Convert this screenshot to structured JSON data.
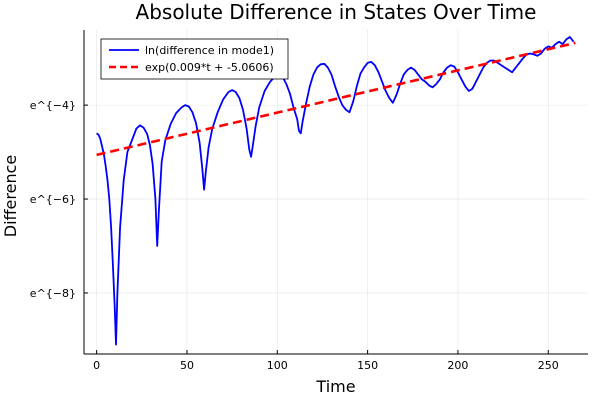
{
  "chart_data": {
    "type": "line",
    "title": "Absolute Difference in States Over Time",
    "xlabel": "Time",
    "ylabel": "Difference",
    "xlim": [
      -7,
      272
    ],
    "ylim": [
      -9.3,
      -2.4
    ],
    "x_ticks": [
      0,
      50,
      100,
      150,
      200,
      250
    ],
    "x_tick_labels": [
      "0",
      "50",
      "100",
      "150",
      "200",
      "250"
    ],
    "y_ticks": [
      -8,
      -6,
      -4
    ],
    "y_tick_labels": [
      "e^{−8}",
      "e^{−6}",
      "e^{−4}"
    ],
    "grid": true,
    "legend_position": "top-left",
    "series": [
      {
        "name": "ln(difference in mode1)",
        "color": "#0000ff",
        "style": "solid",
        "x": [
          0,
          1,
          2,
          3,
          4,
          5,
          6,
          7,
          8,
          9,
          10,
          10.7,
          11.5,
          13,
          15,
          17,
          20,
          22,
          24,
          26,
          28,
          29.5,
          31,
          32.5,
          33.5,
          34.5,
          36,
          38,
          41,
          44,
          47,
          49,
          51,
          53,
          55,
          57,
          58.5,
          59.5,
          60.5,
          62,
          64,
          67,
          70,
          73,
          75,
          77,
          79,
          81,
          83,
          84.5,
          85.5,
          86.5,
          88,
          90,
          93,
          96,
          99,
          101,
          103,
          105,
          107,
          109,
          111,
          112,
          113,
          114,
          116,
          118,
          120,
          122,
          124,
          126,
          128,
          130,
          132,
          134,
          136,
          138,
          140,
          142,
          144,
          146,
          148,
          150,
          152,
          154,
          156,
          158,
          160,
          162,
          164,
          166,
          168,
          170,
          172,
          174,
          176,
          178,
          180,
          182,
          184,
          186,
          188,
          190,
          192,
          194,
          196,
          198,
          200,
          202,
          204,
          206,
          208,
          210,
          212,
          214,
          216,
          218,
          220,
          222,
          224,
          226,
          228,
          230,
          232,
          234,
          236,
          238,
          240,
          242,
          244,
          246,
          248,
          250,
          252,
          254,
          256,
          258,
          260,
          262,
          264
        ],
        "y": [
          -4.6,
          -4.63,
          -4.72,
          -4.88,
          -5.05,
          -5.3,
          -5.6,
          -6.0,
          -6.6,
          -7.4,
          -8.3,
          -9.1,
          -8.0,
          -6.6,
          -5.6,
          -5.0,
          -4.7,
          -4.5,
          -4.43,
          -4.48,
          -4.62,
          -4.85,
          -5.25,
          -6.0,
          -7.0,
          -6.2,
          -5.2,
          -4.75,
          -4.4,
          -4.17,
          -4.05,
          -4.0,
          -4.03,
          -4.15,
          -4.38,
          -4.8,
          -5.35,
          -5.8,
          -5.4,
          -4.9,
          -4.5,
          -4.15,
          -3.88,
          -3.72,
          -3.68,
          -3.72,
          -3.85,
          -4.1,
          -4.5,
          -4.95,
          -5.1,
          -4.85,
          -4.45,
          -4.05,
          -3.7,
          -3.5,
          -3.38,
          -3.35,
          -3.4,
          -3.55,
          -3.75,
          -4.05,
          -4.3,
          -4.55,
          -4.6,
          -4.35,
          -3.95,
          -3.6,
          -3.35,
          -3.2,
          -3.13,
          -3.12,
          -3.2,
          -3.35,
          -3.6,
          -3.82,
          -4.0,
          -4.1,
          -4.15,
          -3.92,
          -3.6,
          -3.33,
          -3.2,
          -3.1,
          -3.08,
          -3.15,
          -3.3,
          -3.5,
          -3.7,
          -3.85,
          -3.95,
          -3.78,
          -3.55,
          -3.35,
          -3.25,
          -3.2,
          -3.25,
          -3.35,
          -3.45,
          -3.5,
          -3.58,
          -3.62,
          -3.55,
          -3.45,
          -3.3,
          -3.2,
          -3.15,
          -3.18,
          -3.3,
          -3.45,
          -3.6,
          -3.7,
          -3.65,
          -3.5,
          -3.35,
          -3.2,
          -3.1,
          -3.05,
          -3.05,
          -3.1,
          -3.15,
          -3.2,
          -3.25,
          -3.3,
          -3.2,
          -3.1,
          -3.0,
          -2.92,
          -2.9,
          -2.92,
          -2.95,
          -2.9,
          -2.8,
          -2.75,
          -2.78,
          -2.7,
          -2.65,
          -2.7,
          -2.6,
          -2.55,
          -2.65
        ]
      },
      {
        "name": "exp(0.009*t + -5.0606)",
        "color": "#ff0000",
        "style": "dashed",
        "x": [
          0,
          265
        ],
        "y": [
          -5.0606,
          -2.6756
        ]
      }
    ]
  }
}
